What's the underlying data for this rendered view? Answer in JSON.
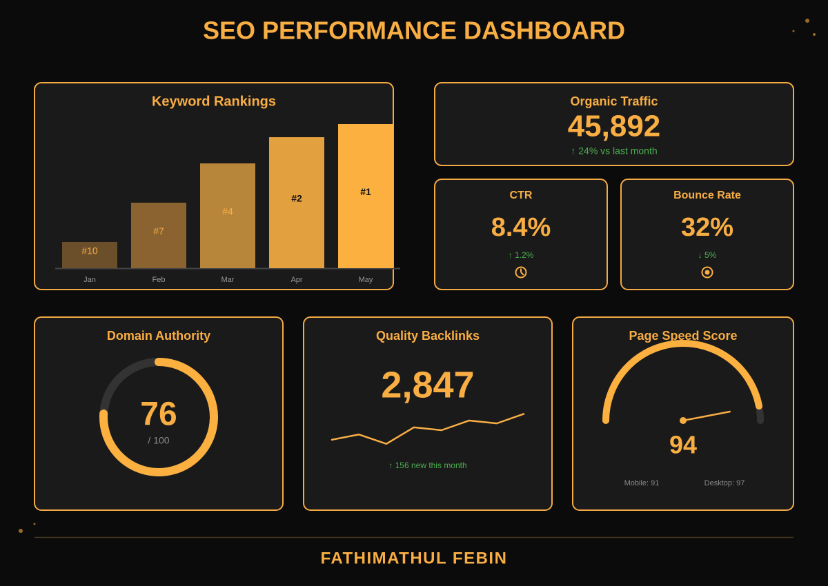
{
  "header": {
    "title": "SEO PERFORMANCE DASHBOARD"
  },
  "keyword_rankings": {
    "type": "bar",
    "title": "Keyword Rankings",
    "categories": [
      "Jan",
      "Feb",
      "Mar",
      "Apr",
      "May"
    ],
    "values": [
      10,
      7,
      4,
      2,
      1
    ],
    "value_labels": [
      "#10",
      "#7",
      "#4",
      "#2",
      "#1"
    ],
    "colors": [
      "#6b4f2a",
      "#8a6330",
      "#b8863a",
      "#e3a03f",
      "#fbb040"
    ],
    "ylim": [
      12,
      0
    ]
  },
  "organic_traffic": {
    "title": "Organic Traffic",
    "value": "45,892",
    "change": "↑ 24% vs last month"
  },
  "ctr": {
    "title": "CTR",
    "value": "8.4%",
    "change": "↑ 1.2%"
  },
  "bounce_rate": {
    "title": "Bounce Rate",
    "value": "32%",
    "change": "↓ 5%"
  },
  "domain_authority": {
    "title": "Domain Authority",
    "value": 76,
    "max": {
      "value": 100,
      "label": "/ 100"
    }
  },
  "quality_backlinks": {
    "type": "line",
    "title": "Quality Backlinks",
    "value": "2,847",
    "trend": [
      2.3,
      3.8,
      1.2,
      5.8,
      5,
      7.7,
      6.9,
      9.6
    ],
    "ylim": [
      0,
      10
    ],
    "change": "↑ 156 new this month"
  },
  "page_speed": {
    "title": "Page Speed Score",
    "value": 94,
    "range": [
      0,
      100
    ],
    "mobile": "Mobile: 91",
    "desktop": "Desktop: 97"
  },
  "footer": {
    "author": "FATHIMATHUL FEBIN"
  }
}
